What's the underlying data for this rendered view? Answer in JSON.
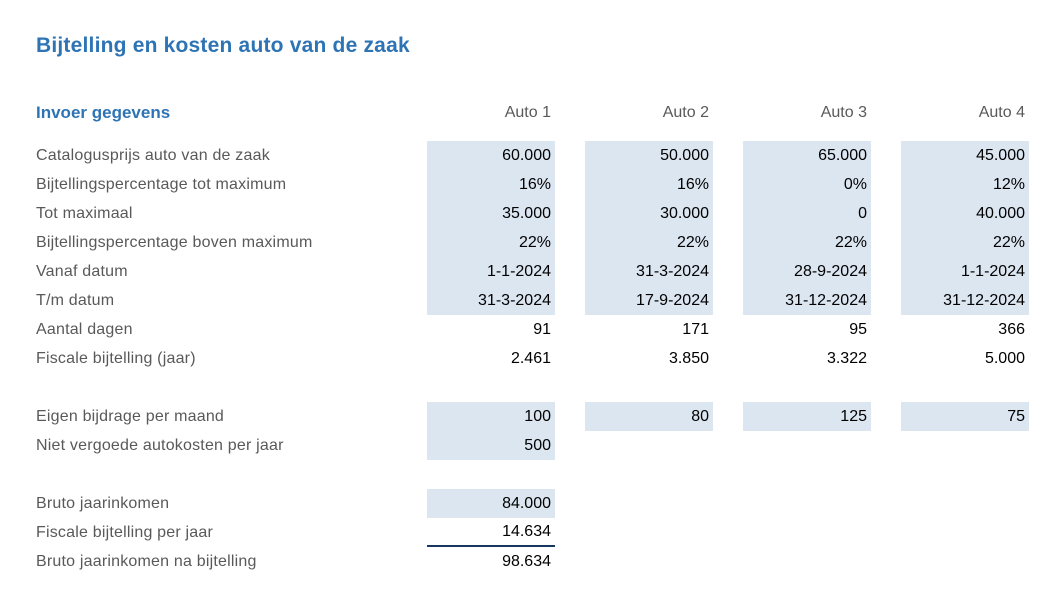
{
  "title": "Bijtelling en kosten auto van de zaak",
  "header": {
    "section_label": "Invoer gegevens",
    "columns": [
      "Auto 1",
      "Auto 2",
      "Auto 3",
      "Auto 4"
    ]
  },
  "rows": [
    {
      "label": "Catalogusprijs auto van de zaak",
      "comment": false,
      "cells": [
        {
          "v": "60.000",
          "fill": true
        },
        {
          "v": "50.000",
          "fill": true
        },
        {
          "v": "65.000",
          "fill": true
        },
        {
          "v": "45.000",
          "fill": true
        }
      ]
    },
    {
      "label": "Bijtellingspercentage tot maximum",
      "comment": true,
      "cells": [
        {
          "v": "16%",
          "fill": true
        },
        {
          "v": "16%",
          "fill": true
        },
        {
          "v": "0%",
          "fill": true
        },
        {
          "v": "12%",
          "fill": true
        }
      ]
    },
    {
      "label": "Tot maximaal",
      "comment": true,
      "cells": [
        {
          "v": "35.000",
          "fill": true
        },
        {
          "v": "30.000",
          "fill": true
        },
        {
          "v": "0",
          "fill": true
        },
        {
          "v": "40.000",
          "fill": true
        }
      ]
    },
    {
      "label": "Bijtellingspercentage boven maximum",
      "comment": false,
      "cells": [
        {
          "v": "22%",
          "fill": true
        },
        {
          "v": "22%",
          "fill": true
        },
        {
          "v": "22%",
          "fill": true
        },
        {
          "v": "22%",
          "fill": true
        }
      ]
    },
    {
      "label": "Vanaf datum",
      "comment": false,
      "cells": [
        {
          "v": "1-1-2024",
          "fill": true
        },
        {
          "v": "31-3-2024",
          "fill": true
        },
        {
          "v": "28-9-2024",
          "fill": true
        },
        {
          "v": "1-1-2024",
          "fill": true
        }
      ]
    },
    {
      "label": "T/m datum",
      "comment": false,
      "cells": [
        {
          "v": "31-3-2024",
          "fill": true
        },
        {
          "v": "17-9-2024",
          "fill": true
        },
        {
          "v": "31-12-2024",
          "fill": true
        },
        {
          "v": "31-12-2024",
          "fill": true
        }
      ]
    },
    {
      "label": "Aantal dagen",
      "comment": false,
      "cells": [
        {
          "v": "91",
          "fill": false
        },
        {
          "v": "171",
          "fill": false
        },
        {
          "v": "95",
          "fill": false
        },
        {
          "v": "366",
          "fill": false
        }
      ]
    },
    {
      "label": "Fiscale bijtelling (jaar)",
      "comment": false,
      "cells": [
        {
          "v": "2.461",
          "fill": false
        },
        {
          "v": "3.850",
          "fill": false
        },
        {
          "v": "3.322",
          "fill": false
        },
        {
          "v": "5.000",
          "fill": false
        }
      ]
    },
    {
      "spacer": true
    },
    {
      "label": "Eigen bijdrage per maand",
      "comment": false,
      "cells": [
        {
          "v": "100",
          "fill": true
        },
        {
          "v": "80",
          "fill": true
        },
        {
          "v": "125",
          "fill": true
        },
        {
          "v": "75",
          "fill": true
        }
      ]
    },
    {
      "label": "Niet vergoede autokosten per jaar",
      "comment": false,
      "cells": [
        {
          "v": "500",
          "fill": true
        },
        {},
        {},
        {}
      ]
    },
    {
      "spacer": true
    },
    {
      "label": "Bruto jaarinkomen",
      "comment": false,
      "cells": [
        {
          "v": "84.000",
          "fill": true
        },
        {},
        {},
        {}
      ]
    },
    {
      "label": "Fiscale bijtelling per jaar",
      "comment": false,
      "cells": [
        {
          "v": "14.634",
          "fill": false,
          "underline": true
        },
        {},
        {},
        {}
      ]
    },
    {
      "label": "Bruto jaarinkomen na bijtelling",
      "comment": false,
      "cells": [
        {
          "v": "98.634",
          "fill": false
        },
        {},
        {},
        {}
      ]
    }
  ],
  "colors": {
    "accent_blue": "#2E74B5",
    "input_cell_fill": "#DCE6F1",
    "label_gray": "#595959",
    "value_black": "#000000",
    "comment_marker_red": "#FF0000",
    "sum_line_navy": "#17375E"
  },
  "icons": {
    "comment_indicator": "red top-right corner triangle (cell note marker)"
  }
}
